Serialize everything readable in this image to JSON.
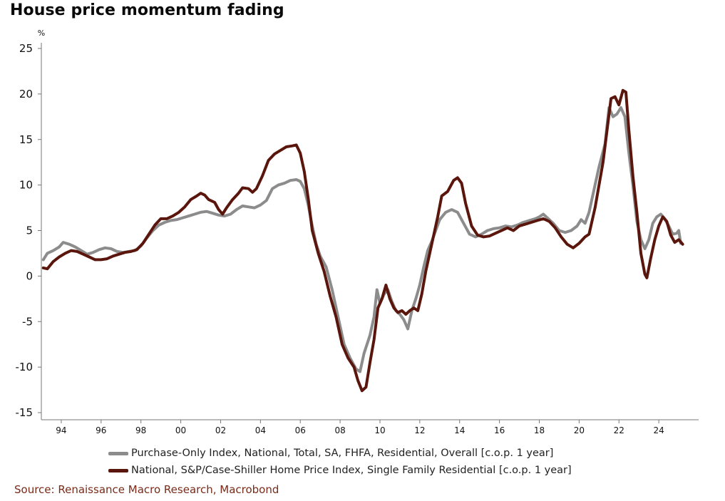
{
  "title": "House price momentum fading",
  "source": "Source: Renaissance Macro Research, Macrobond",
  "chart_data": {
    "type": "line",
    "title": "House price momentum fading",
    "ylabel": "%",
    "xlabel": "",
    "xlim": [
      1993.0,
      2026.0
    ],
    "ylim": [
      -15,
      25
    ],
    "yticks": [
      -15,
      -10,
      -5,
      0,
      5,
      10,
      15,
      20,
      25
    ],
    "xticks": [
      {
        "value": 1994,
        "label": "94"
      },
      {
        "value": 1996,
        "label": "96"
      },
      {
        "value": 1998,
        "label": "98"
      },
      {
        "value": 2000,
        "label": "00"
      },
      {
        "value": 2002,
        "label": "02"
      },
      {
        "value": 2004,
        "label": "04"
      },
      {
        "value": 2006,
        "label": "06"
      },
      {
        "value": 2008,
        "label": "08"
      },
      {
        "value": 2010,
        "label": "10"
      },
      {
        "value": 2012,
        "label": "12"
      },
      {
        "value": 2014,
        "label": "14"
      },
      {
        "value": 2016,
        "label": "16"
      },
      {
        "value": 2018,
        "label": "18"
      },
      {
        "value": 2020,
        "label": "20"
      },
      {
        "value": 2022,
        "label": "22"
      },
      {
        "value": 2024,
        "label": "24"
      }
    ],
    "grid": false,
    "legend_position": "bottom",
    "series": [
      {
        "name": "Purchase-Only Index, National, Total, SA, FHFA, Residential, Overall [c.o.p. 1 year]",
        "color": "#8c8c8c",
        "points": [
          [
            1993.1,
            1.8
          ],
          [
            1993.3,
            2.5
          ],
          [
            1993.6,
            2.8
          ],
          [
            1993.9,
            3.2
          ],
          [
            1994.1,
            3.7
          ],
          [
            1994.4,
            3.5
          ],
          [
            1994.7,
            3.2
          ],
          [
            1995.0,
            2.8
          ],
          [
            1995.3,
            2.4
          ],
          [
            1995.6,
            2.6
          ],
          [
            1995.9,
            2.9
          ],
          [
            1996.2,
            3.1
          ],
          [
            1996.5,
            3.0
          ],
          [
            1996.8,
            2.7
          ],
          [
            1997.1,
            2.6
          ],
          [
            1997.4,
            2.7
          ],
          [
            1997.7,
            2.8
          ],
          [
            1998.0,
            3.3
          ],
          [
            1998.3,
            4.2
          ],
          [
            1998.6,
            5.0
          ],
          [
            1998.9,
            5.6
          ],
          [
            1999.2,
            5.9
          ],
          [
            1999.5,
            6.1
          ],
          [
            1999.8,
            6.2
          ],
          [
            2000.1,
            6.4
          ],
          [
            2000.4,
            6.6
          ],
          [
            2000.7,
            6.8
          ],
          [
            2001.0,
            7.0
          ],
          [
            2001.3,
            7.1
          ],
          [
            2001.6,
            6.9
          ],
          [
            2001.9,
            6.7
          ],
          [
            2002.2,
            6.6
          ],
          [
            2002.5,
            6.8
          ],
          [
            2002.8,
            7.3
          ],
          [
            2003.1,
            7.7
          ],
          [
            2003.4,
            7.6
          ],
          [
            2003.7,
            7.5
          ],
          [
            2004.0,
            7.8
          ],
          [
            2004.3,
            8.3
          ],
          [
            2004.6,
            9.6
          ],
          [
            2004.9,
            10.0
          ],
          [
            2005.2,
            10.2
          ],
          [
            2005.5,
            10.5
          ],
          [
            2005.8,
            10.6
          ],
          [
            2006.0,
            10.4
          ],
          [
            2006.2,
            9.6
          ],
          [
            2006.4,
            7.8
          ],
          [
            2006.6,
            5.5
          ],
          [
            2006.8,
            3.5
          ],
          [
            2007.0,
            2.2
          ],
          [
            2007.3,
            1.0
          ],
          [
            2007.6,
            -1.5
          ],
          [
            2007.9,
            -4.5
          ],
          [
            2008.2,
            -7.5
          ],
          [
            2008.5,
            -9.0
          ],
          [
            2008.8,
            -10.2
          ],
          [
            2009.0,
            -10.5
          ],
          [
            2009.2,
            -8.5
          ],
          [
            2009.5,
            -6.5
          ],
          [
            2009.7,
            -4.5
          ],
          [
            2009.85,
            -1.5
          ],
          [
            2010.0,
            -3.0
          ],
          [
            2010.2,
            -2.0
          ],
          [
            2010.4,
            -1.5
          ],
          [
            2010.6,
            -2.8
          ],
          [
            2010.8,
            -3.8
          ],
          [
            2011.0,
            -4.2
          ],
          [
            2011.2,
            -4.8
          ],
          [
            2011.4,
            -5.8
          ],
          [
            2011.6,
            -3.8
          ],
          [
            2011.8,
            -2.5
          ],
          [
            2012.0,
            -1.0
          ],
          [
            2012.2,
            1.0
          ],
          [
            2012.4,
            2.8
          ],
          [
            2012.6,
            3.8
          ],
          [
            2012.8,
            5.0
          ],
          [
            2013.0,
            6.2
          ],
          [
            2013.3,
            7.0
          ],
          [
            2013.6,
            7.3
          ],
          [
            2013.9,
            7.0
          ],
          [
            2014.2,
            5.8
          ],
          [
            2014.5,
            4.6
          ],
          [
            2014.8,
            4.3
          ],
          [
            2015.1,
            4.6
          ],
          [
            2015.4,
            5.0
          ],
          [
            2015.7,
            5.2
          ],
          [
            2016.0,
            5.3
          ],
          [
            2016.3,
            5.5
          ],
          [
            2016.6,
            5.4
          ],
          [
            2016.9,
            5.6
          ],
          [
            2017.2,
            5.9
          ],
          [
            2017.5,
            6.1
          ],
          [
            2017.8,
            6.3
          ],
          [
            2018.0,
            6.5
          ],
          [
            2018.2,
            6.8
          ],
          [
            2018.4,
            6.4
          ],
          [
            2018.7,
            5.8
          ],
          [
            2019.0,
            5.0
          ],
          [
            2019.3,
            4.8
          ],
          [
            2019.6,
            5.0
          ],
          [
            2019.9,
            5.5
          ],
          [
            2020.1,
            6.2
          ],
          [
            2020.3,
            5.8
          ],
          [
            2020.5,
            7.0
          ],
          [
            2020.8,
            10.0
          ],
          [
            2021.0,
            12.0
          ],
          [
            2021.3,
            14.5
          ],
          [
            2021.5,
            18.5
          ],
          [
            2021.7,
            17.5
          ],
          [
            2021.9,
            17.8
          ],
          [
            2022.1,
            18.5
          ],
          [
            2022.3,
            17.5
          ],
          [
            2022.5,
            13.5
          ],
          [
            2022.7,
            10.0
          ],
          [
            2022.9,
            6.0
          ],
          [
            2023.1,
            4.0
          ],
          [
            2023.3,
            3.0
          ],
          [
            2023.5,
            4.0
          ],
          [
            2023.7,
            5.8
          ],
          [
            2023.9,
            6.5
          ],
          [
            2024.1,
            6.8
          ],
          [
            2024.3,
            6.3
          ],
          [
            2024.5,
            5.5
          ],
          [
            2024.7,
            4.6
          ],
          [
            2024.9,
            4.7
          ],
          [
            2025.0,
            5.0
          ],
          [
            2025.1,
            3.6
          ]
        ]
      },
      {
        "name": "National, S&P/Case-Shiller Home Price Index, Single Family Residential [c.o.p. 1 year]",
        "color": "#5a160c",
        "points": [
          [
            1993.1,
            0.9
          ],
          [
            1993.3,
            0.8
          ],
          [
            1993.6,
            1.6
          ],
          [
            1993.9,
            2.1
          ],
          [
            1994.2,
            2.5
          ],
          [
            1994.5,
            2.8
          ],
          [
            1994.8,
            2.7
          ],
          [
            1995.1,
            2.4
          ],
          [
            1995.4,
            2.1
          ],
          [
            1995.7,
            1.8
          ],
          [
            1996.0,
            1.8
          ],
          [
            1996.3,
            1.9
          ],
          [
            1996.6,
            2.2
          ],
          [
            1996.9,
            2.4
          ],
          [
            1997.2,
            2.6
          ],
          [
            1997.5,
            2.7
          ],
          [
            1997.8,
            2.9
          ],
          [
            1998.1,
            3.6
          ],
          [
            1998.4,
            4.6
          ],
          [
            1998.7,
            5.6
          ],
          [
            1999.0,
            6.3
          ],
          [
            1999.3,
            6.3
          ],
          [
            1999.6,
            6.6
          ],
          [
            1999.9,
            7.0
          ],
          [
            2000.2,
            7.6
          ],
          [
            2000.5,
            8.4
          ],
          [
            2000.8,
            8.8
          ],
          [
            2001.0,
            9.1
          ],
          [
            2001.2,
            8.9
          ],
          [
            2001.4,
            8.4
          ],
          [
            2001.7,
            8.1
          ],
          [
            2001.9,
            7.3
          ],
          [
            2002.1,
            6.8
          ],
          [
            2002.3,
            7.5
          ],
          [
            2002.6,
            8.4
          ],
          [
            2002.9,
            9.1
          ],
          [
            2003.1,
            9.7
          ],
          [
            2003.4,
            9.6
          ],
          [
            2003.6,
            9.2
          ],
          [
            2003.8,
            9.6
          ],
          [
            2004.1,
            11.0
          ],
          [
            2004.4,
            12.7
          ],
          [
            2004.7,
            13.4
          ],
          [
            2005.0,
            13.8
          ],
          [
            2005.3,
            14.2
          ],
          [
            2005.6,
            14.3
          ],
          [
            2005.8,
            14.4
          ],
          [
            2006.0,
            13.5
          ],
          [
            2006.2,
            11.5
          ],
          [
            2006.4,
            8.5
          ],
          [
            2006.6,
            5.0
          ],
          [
            2006.9,
            2.5
          ],
          [
            2007.2,
            0.5
          ],
          [
            2007.5,
            -2.2
          ],
          [
            2007.8,
            -4.5
          ],
          [
            2008.1,
            -7.5
          ],
          [
            2008.4,
            -9.0
          ],
          [
            2008.7,
            -10.0
          ],
          [
            2008.9,
            -11.5
          ],
          [
            2009.1,
            -12.6
          ],
          [
            2009.3,
            -12.2
          ],
          [
            2009.5,
            -9.5
          ],
          [
            2009.7,
            -7.0
          ],
          [
            2009.9,
            -3.5
          ],
          [
            2010.1,
            -2.5
          ],
          [
            2010.3,
            -1.0
          ],
          [
            2010.5,
            -2.5
          ],
          [
            2010.7,
            -3.5
          ],
          [
            2010.9,
            -4.0
          ],
          [
            2011.1,
            -3.8
          ],
          [
            2011.3,
            -4.2
          ],
          [
            2011.5,
            -3.8
          ],
          [
            2011.7,
            -3.5
          ],
          [
            2011.9,
            -3.8
          ],
          [
            2012.1,
            -2.0
          ],
          [
            2012.3,
            0.5
          ],
          [
            2012.5,
            2.5
          ],
          [
            2012.7,
            4.5
          ],
          [
            2012.9,
            6.5
          ],
          [
            2013.1,
            8.8
          ],
          [
            2013.4,
            9.3
          ],
          [
            2013.7,
            10.5
          ],
          [
            2013.9,
            10.8
          ],
          [
            2014.1,
            10.2
          ],
          [
            2014.3,
            8.0
          ],
          [
            2014.6,
            5.5
          ],
          [
            2014.9,
            4.5
          ],
          [
            2015.2,
            4.3
          ],
          [
            2015.5,
            4.4
          ],
          [
            2015.8,
            4.7
          ],
          [
            2016.1,
            5.0
          ],
          [
            2016.4,
            5.3
          ],
          [
            2016.7,
            5.0
          ],
          [
            2017.0,
            5.5
          ],
          [
            2017.3,
            5.7
          ],
          [
            2017.6,
            5.9
          ],
          [
            2017.9,
            6.1
          ],
          [
            2018.2,
            6.3
          ],
          [
            2018.5,
            6.0
          ],
          [
            2018.8,
            5.3
          ],
          [
            2019.1,
            4.3
          ],
          [
            2019.4,
            3.5
          ],
          [
            2019.7,
            3.1
          ],
          [
            2020.0,
            3.6
          ],
          [
            2020.3,
            4.3
          ],
          [
            2020.5,
            4.6
          ],
          [
            2020.8,
            7.5
          ],
          [
            2021.0,
            10.0
          ],
          [
            2021.2,
            12.5
          ],
          [
            2021.4,
            16.0
          ],
          [
            2021.6,
            19.5
          ],
          [
            2021.8,
            19.7
          ],
          [
            2022.0,
            18.8
          ],
          [
            2022.2,
            20.4
          ],
          [
            2022.35,
            20.2
          ],
          [
            2022.5,
            16.0
          ],
          [
            2022.7,
            11.0
          ],
          [
            2022.9,
            7.0
          ],
          [
            2023.1,
            2.5
          ],
          [
            2023.3,
            0.2
          ],
          [
            2023.4,
            -0.2
          ],
          [
            2023.6,
            2.0
          ],
          [
            2023.8,
            4.0
          ],
          [
            2024.0,
            5.5
          ],
          [
            2024.2,
            6.5
          ],
          [
            2024.4,
            6.0
          ],
          [
            2024.6,
            4.5
          ],
          [
            2024.8,
            3.7
          ],
          [
            2025.0,
            4.0
          ],
          [
            2025.2,
            3.5
          ]
        ]
      }
    ]
  }
}
